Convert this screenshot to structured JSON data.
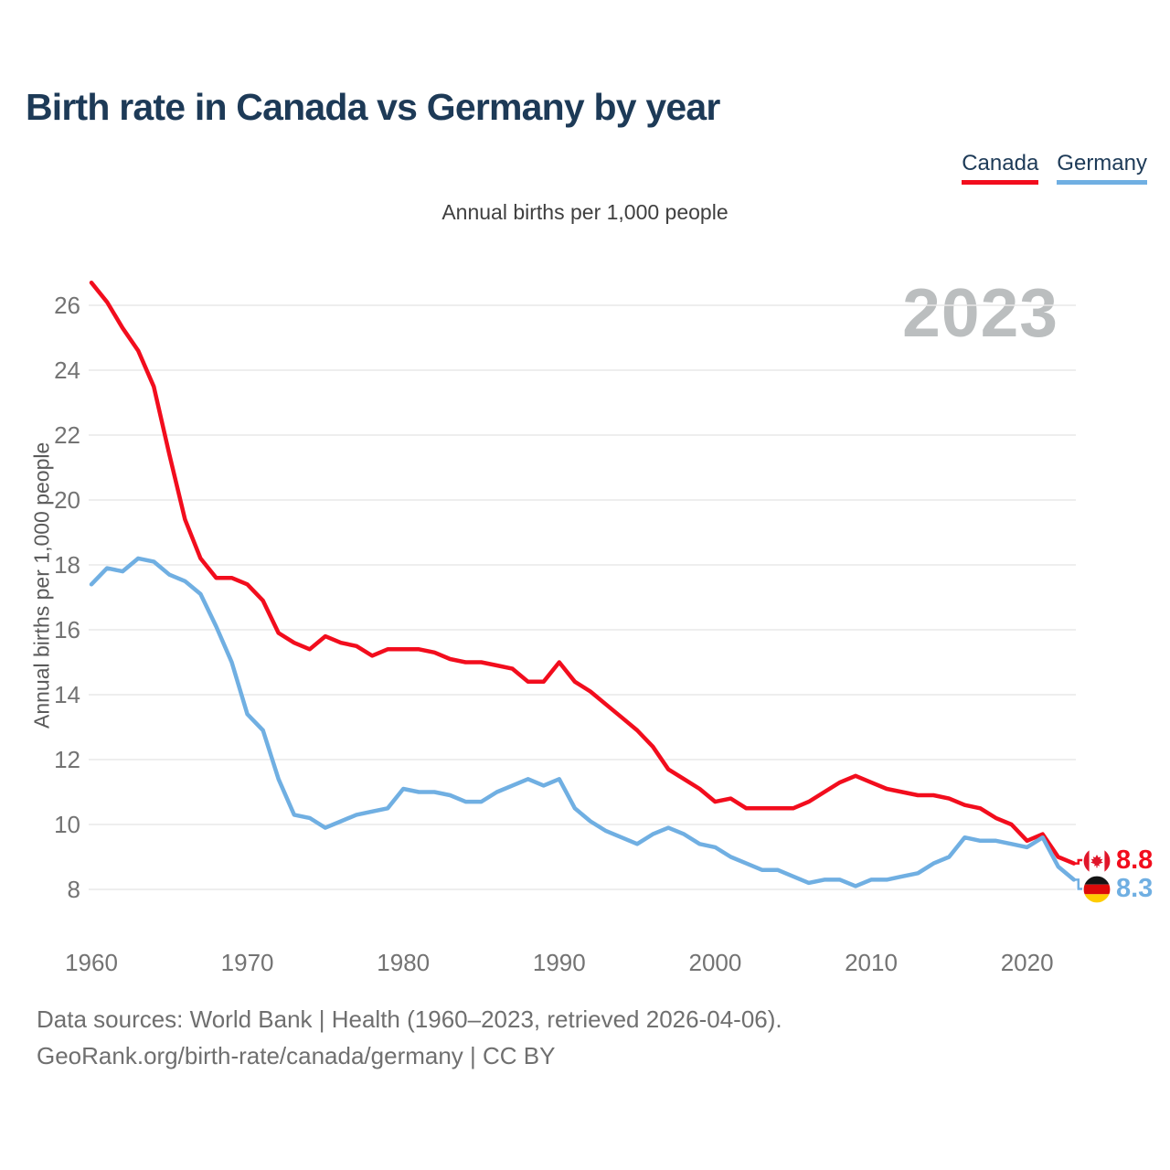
{
  "header": {
    "title": "Birth rate in Canada vs Germany by year",
    "subtitle": "Annual births per 1,000 people"
  },
  "watermark": {
    "text": "2023"
  },
  "chart_data": {
    "type": "line",
    "title": "Birth rate in Canada vs Germany by year",
    "subtitle": "Annual births per 1,000 people",
    "ylabel": "Annual births per 1,000 people",
    "xlabel": "",
    "grid": "horizontal",
    "legend_position": "top-right",
    "ylim": [
      7.2,
      27.2
    ],
    "yticks": [
      8,
      10,
      12,
      14,
      16,
      18,
      20,
      22,
      24,
      26
    ],
    "xticks": [
      1960,
      1970,
      1980,
      1990,
      2000,
      2010,
      2020
    ],
    "x": [
      1960,
      1961,
      1962,
      1963,
      1964,
      1965,
      1966,
      1967,
      1968,
      1969,
      1970,
      1971,
      1972,
      1973,
      1974,
      1975,
      1976,
      1977,
      1978,
      1979,
      1980,
      1981,
      1982,
      1983,
      1984,
      1985,
      1986,
      1987,
      1988,
      1989,
      1990,
      1991,
      1992,
      1993,
      1994,
      1995,
      1996,
      1997,
      1998,
      1999,
      2000,
      2001,
      2002,
      2003,
      2004,
      2005,
      2006,
      2007,
      2008,
      2009,
      2010,
      2011,
      2012,
      2013,
      2014,
      2015,
      2016,
      2017,
      2018,
      2019,
      2020,
      2021,
      2022,
      2023
    ],
    "series": [
      {
        "name": "Canada",
        "color": "#f20d1d",
        "end_label": "8.8",
        "values": [
          26.7,
          26.1,
          25.3,
          24.6,
          23.5,
          21.4,
          19.4,
          18.2,
          17.6,
          17.6,
          17.4,
          16.9,
          15.9,
          15.6,
          15.4,
          15.8,
          15.6,
          15.5,
          15.2,
          15.4,
          15.4,
          15.4,
          15.3,
          15.1,
          15.0,
          15.0,
          14.9,
          14.8,
          14.4,
          14.4,
          15.0,
          14.4,
          14.1,
          13.7,
          13.3,
          12.9,
          12.4,
          11.7,
          11.4,
          11.1,
          10.7,
          10.8,
          10.5,
          10.5,
          10.5,
          10.5,
          10.7,
          11.0,
          11.3,
          11.5,
          11.3,
          11.1,
          11.0,
          10.9,
          10.9,
          10.8,
          10.6,
          10.5,
          10.2,
          10.0,
          9.5,
          9.7,
          9.0,
          8.8
        ]
      },
      {
        "name": "Germany",
        "color": "#70afe2",
        "end_label": "8.3",
        "values": [
          17.4,
          17.9,
          17.8,
          18.2,
          18.1,
          17.7,
          17.5,
          17.1,
          16.1,
          15.0,
          13.4,
          12.9,
          11.4,
          10.3,
          10.2,
          9.9,
          10.1,
          10.3,
          10.4,
          10.5,
          11.1,
          11.0,
          11.0,
          10.9,
          10.7,
          10.7,
          11.0,
          11.2,
          11.4,
          11.2,
          11.4,
          10.5,
          10.1,
          9.8,
          9.6,
          9.4,
          9.7,
          9.9,
          9.7,
          9.4,
          9.3,
          9.0,
          8.8,
          8.6,
          8.6,
          8.4,
          8.2,
          8.3,
          8.3,
          8.1,
          8.3,
          8.3,
          8.4,
          8.5,
          8.8,
          9.0,
          9.6,
          9.5,
          9.5,
          9.4,
          9.3,
          9.6,
          8.7,
          8.3
        ]
      }
    ]
  },
  "footer": {
    "line1": "Data sources: World Bank | Health (1960–2023, retrieved 2026-04-06).",
    "line2": "GeoRank.org/birth-rate/canada/germany | CC BY"
  }
}
